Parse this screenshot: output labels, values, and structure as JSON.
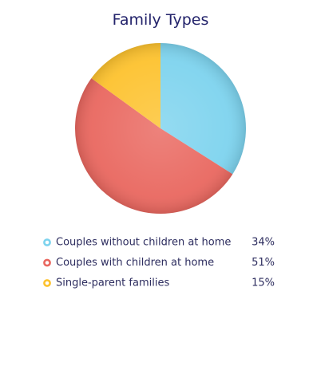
{
  "chart_data": {
    "type": "pie",
    "title": "Family Types",
    "categories": [
      "Couples without children at home",
      "Couples with children at home",
      "Single-parent families"
    ],
    "values": [
      34,
      51,
      15
    ],
    "value_labels": [
      "34%",
      "51%",
      "15%"
    ],
    "colors": [
      "#7dd3ee",
      "#e9675f",
      "#fdc22e"
    ]
  }
}
